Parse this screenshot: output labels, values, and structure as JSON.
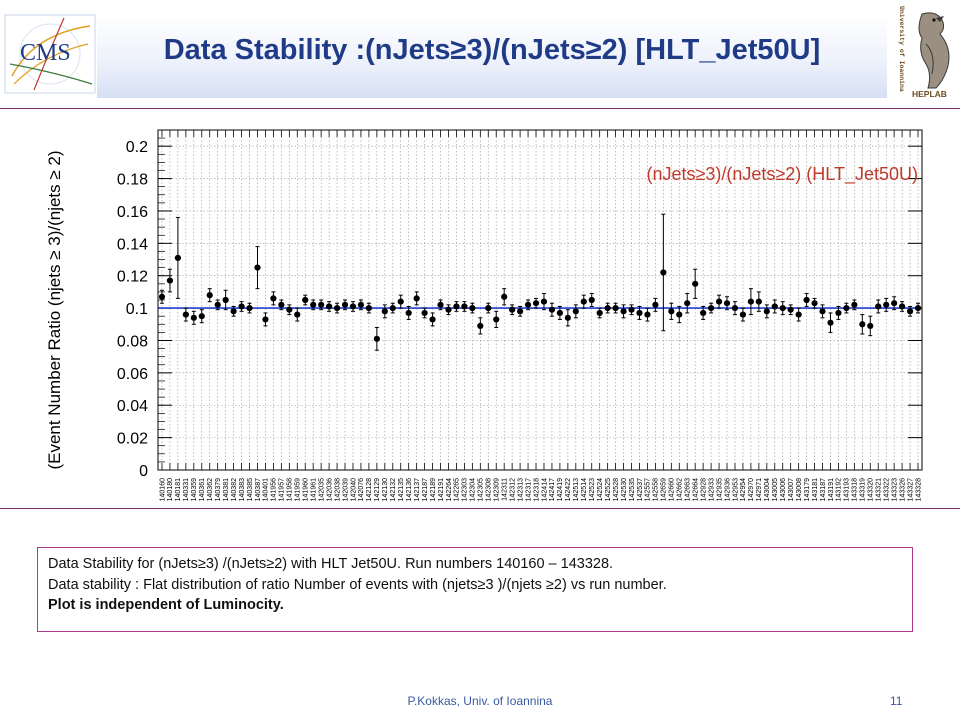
{
  "header": {
    "title": "Data Stability :(nJets≥3)/(nJets≥2) [HLT_Jet50U]",
    "left_logo_text": "CMS",
    "right_logo_text_vertical": "University of Ioannina",
    "right_logo_text_bottom": "HEPLAB"
  },
  "chart_data": {
    "type": "scatter",
    "title": "",
    "ylabel": "(Event Number Ratio (njets ≥ 3)/(njets ≥ 2)",
    "xlabel": "",
    "annotation": "(nJets≥3)/(nJets≥2) (HLT_Jet50U)",
    "ylim": [
      0,
      0.21
    ],
    "yticks": [
      "0",
      "0.02",
      "0.04",
      "0.06",
      "0.08",
      "0.1",
      "0.12",
      "0.14",
      "0.16",
      "0.18",
      "0.2"
    ],
    "reference_line": 0.1,
    "grid": true,
    "colors": {
      "points": "#000000",
      "reference_line": "#1f3fd0",
      "annotation": "#c0392b",
      "grid": "#9a9a9a"
    },
    "categories": [
      "140160",
      "140180",
      "140181",
      "140331",
      "140359",
      "140361",
      "140362",
      "140379",
      "140381",
      "140382",
      "140383",
      "140385",
      "140387",
      "140401",
      "141956",
      "141957",
      "141958",
      "141959",
      "141960",
      "141961",
      "142035",
      "142036",
      "142038",
      "142039",
      "142040",
      "142076",
      "142128",
      "142129",
      "142130",
      "142132",
      "142135",
      "142136",
      "142137",
      "142187",
      "142189",
      "142191",
      "142264",
      "142265",
      "142303",
      "142304",
      "142305",
      "142308",
      "142309",
      "142311",
      "142312",
      "142313",
      "142317",
      "142318",
      "142414",
      "142417",
      "142419",
      "142422",
      "142513",
      "142514",
      "142523",
      "142524",
      "142525",
      "142528",
      "142530",
      "142535",
      "142537",
      "142557",
      "142558",
      "142659",
      "142660",
      "142662",
      "142663",
      "142664",
      "142928",
      "142933",
      "142935",
      "142936",
      "142953",
      "142954",
      "142970",
      "142971",
      "143004",
      "143005",
      "143006",
      "143007",
      "143008",
      "143179",
      "143181",
      "143187",
      "143191",
      "143192",
      "143193",
      "143318",
      "143319",
      "143320",
      "143321",
      "143322",
      "143323",
      "143326",
      "143327",
      "143328"
    ],
    "values": [
      0.107,
      0.117,
      0.131,
      0.096,
      0.094,
      0.095,
      0.108,
      0.102,
      0.105,
      0.098,
      0.101,
      0.1,
      0.125,
      0.093,
      0.106,
      0.102,
      0.099,
      0.096,
      0.105,
      0.102,
      0.102,
      0.101,
      0.1,
      0.102,
      0.101,
      0.102,
      0.1,
      0.081,
      0.098,
      0.1,
      0.104,
      0.097,
      0.106,
      0.097,
      0.093,
      0.102,
      0.099,
      0.101,
      0.101,
      0.1,
      0.089,
      0.1,
      0.093,
      0.107,
      0.099,
      0.098,
      0.102,
      0.103,
      0.104,
      0.099,
      0.097,
      0.094,
      0.098,
      0.104,
      0.105,
      0.097,
      0.1,
      0.1,
      0.098,
      0.099,
      0.097,
      0.096,
      0.102,
      0.122,
      0.098,
      0.096,
      0.103,
      0.115,
      0.097,
      0.1,
      0.104,
      0.103,
      0.1,
      0.096,
      0.104,
      0.104,
      0.098,
      0.101,
      0.1,
      0.099,
      0.096,
      0.105,
      0.103,
      0.098,
      0.091,
      0.097,
      0.1,
      0.102,
      0.09,
      0.089,
      0.101,
      0.102,
      0.103,
      0.101,
      0.098,
      0.1
    ],
    "errors": [
      0.004,
      0.007,
      0.025,
      0.004,
      0.004,
      0.004,
      0.004,
      0.003,
      0.006,
      0.003,
      0.003,
      0.003,
      0.013,
      0.004,
      0.004,
      0.003,
      0.003,
      0.004,
      0.003,
      0.003,
      0.003,
      0.003,
      0.003,
      0.003,
      0.003,
      0.003,
      0.003,
      0.007,
      0.004,
      0.003,
      0.004,
      0.004,
      0.004,
      0.003,
      0.004,
      0.003,
      0.003,
      0.003,
      0.003,
      0.003,
      0.005,
      0.003,
      0.005,
      0.005,
      0.003,
      0.003,
      0.003,
      0.003,
      0.005,
      0.004,
      0.004,
      0.005,
      0.004,
      0.004,
      0.004,
      0.003,
      0.003,
      0.003,
      0.004,
      0.003,
      0.004,
      0.004,
      0.004,
      0.036,
      0.005,
      0.005,
      0.006,
      0.009,
      0.004,
      0.003,
      0.004,
      0.004,
      0.004,
      0.004,
      0.008,
      0.006,
      0.004,
      0.004,
      0.004,
      0.003,
      0.004,
      0.004,
      0.003,
      0.004,
      0.006,
      0.004,
      0.003,
      0.003,
      0.006,
      0.006,
      0.004,
      0.004,
      0.004,
      0.003,
      0.003,
      0.003
    ]
  },
  "notes": {
    "line1": "Data Stability for (nJets≥3) /(nJets≥2) with HLT Jet50U. Run numbers 140160 – 143328.",
    "line2": "Data stability : Flat distribution of ratio Number of events with (njets≥3 )/(njets ≥2) vs run number.",
    "line3": "Plot is independent of Luminocity."
  },
  "footer": {
    "author": "P.Kokkas, Univ. of Ioannina",
    "page": "11"
  }
}
